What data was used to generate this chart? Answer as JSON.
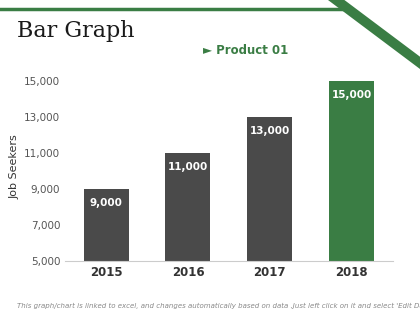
{
  "title": "Bar Graph",
  "legend_label": "► Product 01",
  "categories": [
    "2015",
    "2016",
    "2017",
    "2018"
  ],
  "values": [
    9000,
    11000,
    13000,
    15000
  ],
  "bar_colors": [
    "#4a4a4a",
    "#4a4a4a",
    "#4a4a4a",
    "#3a7d44"
  ],
  "ylabel": "Job Seekers",
  "ylim": [
    5000,
    15500
  ],
  "yticks": [
    5000,
    7000,
    9000,
    11000,
    13000,
    15000
  ],
  "ytick_labels": [
    "5,000",
    "7,000",
    "9,000",
    "11,000",
    "13,000",
    "15,000"
  ],
  "value_labels": [
    "9,000",
    "11,000",
    "13,000",
    "15,000"
  ],
  "bg_color": "#ffffff",
  "plot_bg_color": "#ffffff",
  "title_fontsize": 16,
  "footer_text": "This graph/chart is linked to excel, and changes automatically based on data .Just left click on it and select 'Edit Data'.",
  "legend_color": "#3a7d44",
  "title_color": "#1a1a1a",
  "bar_label_color": "#ffffff",
  "green_color": "#3a7d44",
  "top_line_color": "#3a7d44",
  "spine_color": "#cccccc"
}
